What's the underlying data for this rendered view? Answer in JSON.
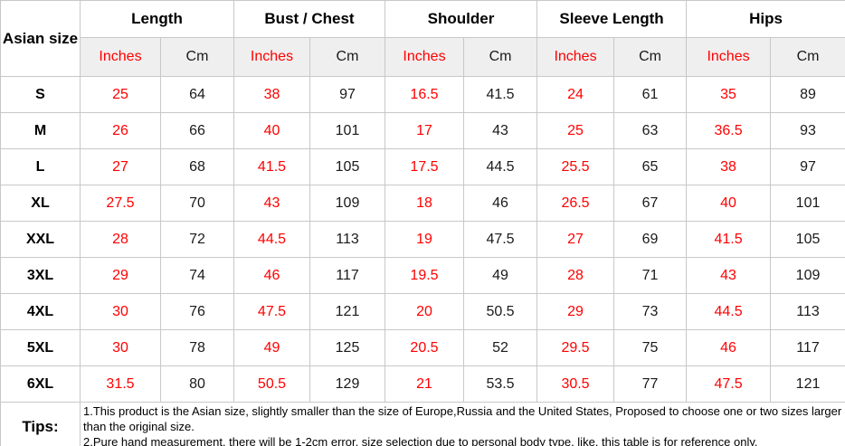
{
  "chart_data": {
    "type": "table",
    "corner_header": "Asian size",
    "groups": [
      "Length",
      "Bust / Chest",
      "Shoulder",
      "Sleeve Length",
      "Hips"
    ],
    "units": [
      "Inches",
      "Cm"
    ],
    "rows": [
      {
        "size": "S",
        "values": [
          "25",
          "64",
          "38",
          "97",
          "16.5",
          "41.5",
          "24",
          "61",
          "35",
          "89"
        ]
      },
      {
        "size": "M",
        "values": [
          "26",
          "66",
          "40",
          "101",
          "17",
          "43",
          "25",
          "63",
          "36.5",
          "93"
        ]
      },
      {
        "size": "L",
        "values": [
          "27",
          "68",
          "41.5",
          "105",
          "17.5",
          "44.5",
          "25.5",
          "65",
          "38",
          "97"
        ]
      },
      {
        "size": "XL",
        "values": [
          "27.5",
          "70",
          "43",
          "109",
          "18",
          "46",
          "26.5",
          "67",
          "40",
          "101"
        ]
      },
      {
        "size": "XXL",
        "values": [
          "28",
          "72",
          "44.5",
          "113",
          "19",
          "47.5",
          "27",
          "69",
          "41.5",
          "105"
        ]
      },
      {
        "size": "3XL",
        "values": [
          "29",
          "74",
          "46",
          "117",
          "19.5",
          "49",
          "28",
          "71",
          "43",
          "109"
        ]
      },
      {
        "size": "4XL",
        "values": [
          "30",
          "76",
          "47.5",
          "121",
          "20",
          "50.5",
          "29",
          "73",
          "44.5",
          "113"
        ]
      },
      {
        "size": "5XL",
        "values": [
          "30",
          "78",
          "49",
          "125",
          "20.5",
          "52",
          "29.5",
          "75",
          "46",
          "117"
        ]
      },
      {
        "size": "6XL",
        "values": [
          "31.5",
          "80",
          "50.5",
          "129",
          "21",
          "53.5",
          "30.5",
          "77",
          "47.5",
          "121"
        ]
      }
    ],
    "tips_label": "Tips:",
    "notes": [
      "1.This product is the Asian size, slightly smaller than the size of Europe,Russia and the United States, Proposed to choose one or two sizes larger than the original size.",
      "2.Pure hand measurement, there will be 1-2cm error, size selection due to personal body type, like, this table is for reference only."
    ]
  },
  "colors": {
    "accent_red": "#ff0000",
    "unit_row_bg": "#efefef",
    "border": "#c8c8c8",
    "text": "#000000"
  }
}
